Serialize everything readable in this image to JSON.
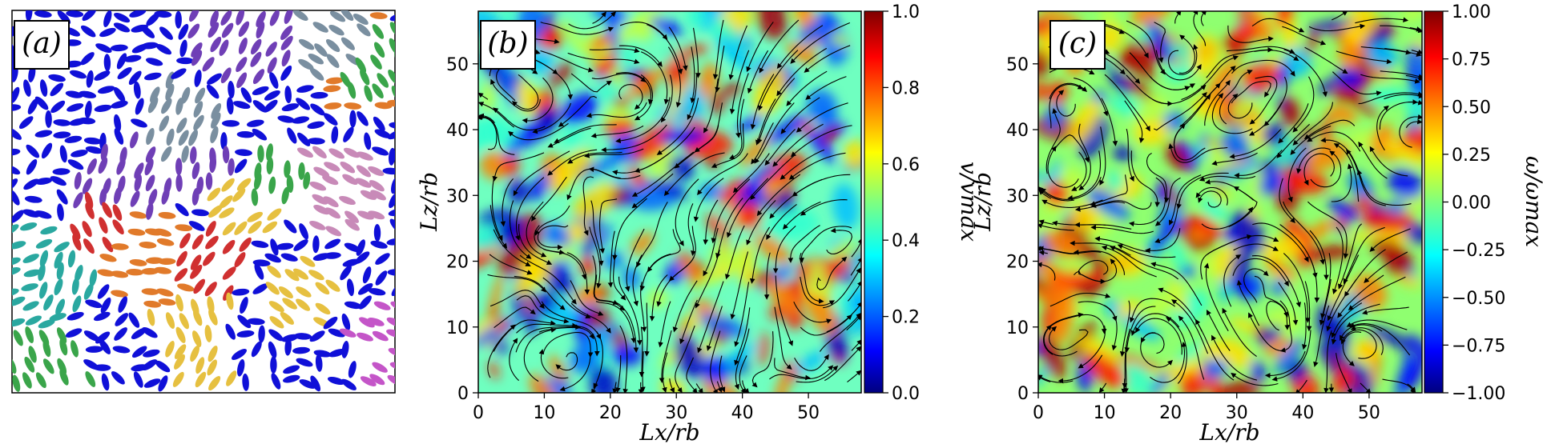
{
  "panels": {
    "a": {
      "label": "(a)",
      "description_colors": [
        "#1010d8",
        "#6f3fb6",
        "#c455c8",
        "#e17a2a",
        "#2aa8a0",
        "#6fbf5a",
        "#d03030",
        "#c88ab8",
        "#3aa54a",
        "#e6c040",
        "#1f5f2f",
        "#7a8fa0"
      ]
    },
    "b": {
      "label": "(b)",
      "xlabel": "Lx/rb",
      "ylabel": "Lz/rb",
      "colorbar_label": "v/vmax",
      "xticks": [
        "0",
        "10",
        "20",
        "30",
        "40",
        "50"
      ],
      "yticks": [
        "0",
        "10",
        "20",
        "30",
        "40",
        "50"
      ],
      "cbar_ticks": [
        "0.0",
        "0.2",
        "0.4",
        "0.6",
        "0.8",
        "1.0"
      ]
    },
    "c": {
      "label": "(c)",
      "xlabel": "Lx/rb",
      "ylabel": "Lz/rb",
      "colorbar_label": "ω/ωmax",
      "xticks": [
        "0",
        "10",
        "20",
        "30",
        "40",
        "50"
      ],
      "yticks": [
        "0",
        "10",
        "20",
        "30",
        "40",
        "50"
      ],
      "cbar_ticks": [
        "−1.00",
        "−0.75",
        "−0.50",
        "−0.25",
        "0.00",
        "0.25",
        "0.50",
        "0.75",
        "1.00"
      ]
    }
  },
  "chart_data": [
    {
      "type": "heatmap",
      "title": "(b)",
      "xlabel": "L_x/r_b",
      "ylabel": "L_z/r_b",
      "xlim": [
        0,
        58
      ],
      "ylim": [
        0,
        58
      ],
      "colorbar": {
        "label": "v/v_max",
        "range": [
          0.0,
          1.0
        ],
        "colormap": "jet"
      },
      "overlay": "streamlines"
    },
    {
      "type": "heatmap",
      "title": "(c)",
      "xlabel": "L_x/r_b",
      "ylabel": "L_z/r_b",
      "xlim": [
        0,
        58
      ],
      "ylim": [
        0,
        58
      ],
      "colorbar": {
        "label": "ω/ω_max",
        "range": [
          -1.0,
          1.0
        ],
        "colormap": "jet"
      },
      "overlay": "streamlines"
    }
  ],
  "colors": {
    "jet_stops": [
      "#00007f",
      "#0000ff",
      "#007fff",
      "#00ffff",
      "#7fff7f",
      "#ffff00",
      "#ff7f00",
      "#ff0000",
      "#7f0000"
    ]
  }
}
